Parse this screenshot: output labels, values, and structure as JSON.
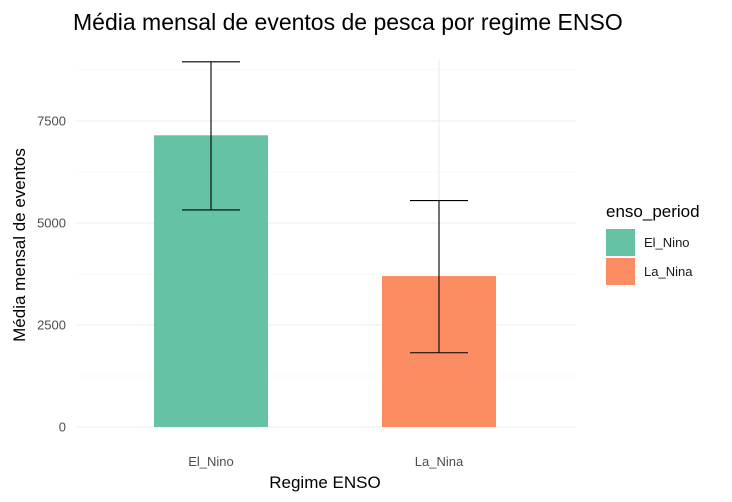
{
  "chart_data": {
    "type": "bar",
    "title": "Média mensal de eventos de pesca por regime ENSO",
    "xlabel": "Regime ENSO",
    "ylabel": "Média mensal de eventos",
    "categories": [
      "El_Nino",
      "La_Nina"
    ],
    "values": [
      7150,
      3700
    ],
    "error_bars": [
      {
        "low": 5320,
        "high": 8950
      },
      {
        "low": 1820,
        "high": 5550
      }
    ],
    "ylim": [
      0,
      9500
    ],
    "y_ticks": [
      0,
      2500,
      5000,
      7500
    ],
    "y_tick_labels": [
      "0",
      "2500",
      "5000",
      "7500"
    ],
    "colors": [
      "#66c2a5",
      "#fc8d62"
    ],
    "grid": true,
    "legend": {
      "title": "enso_period",
      "position": "right",
      "items": [
        {
          "label": "El_Nino",
          "color": "#66c2a5"
        },
        {
          "label": "La_Nina",
          "color": "#fc8d62"
        }
      ]
    }
  }
}
